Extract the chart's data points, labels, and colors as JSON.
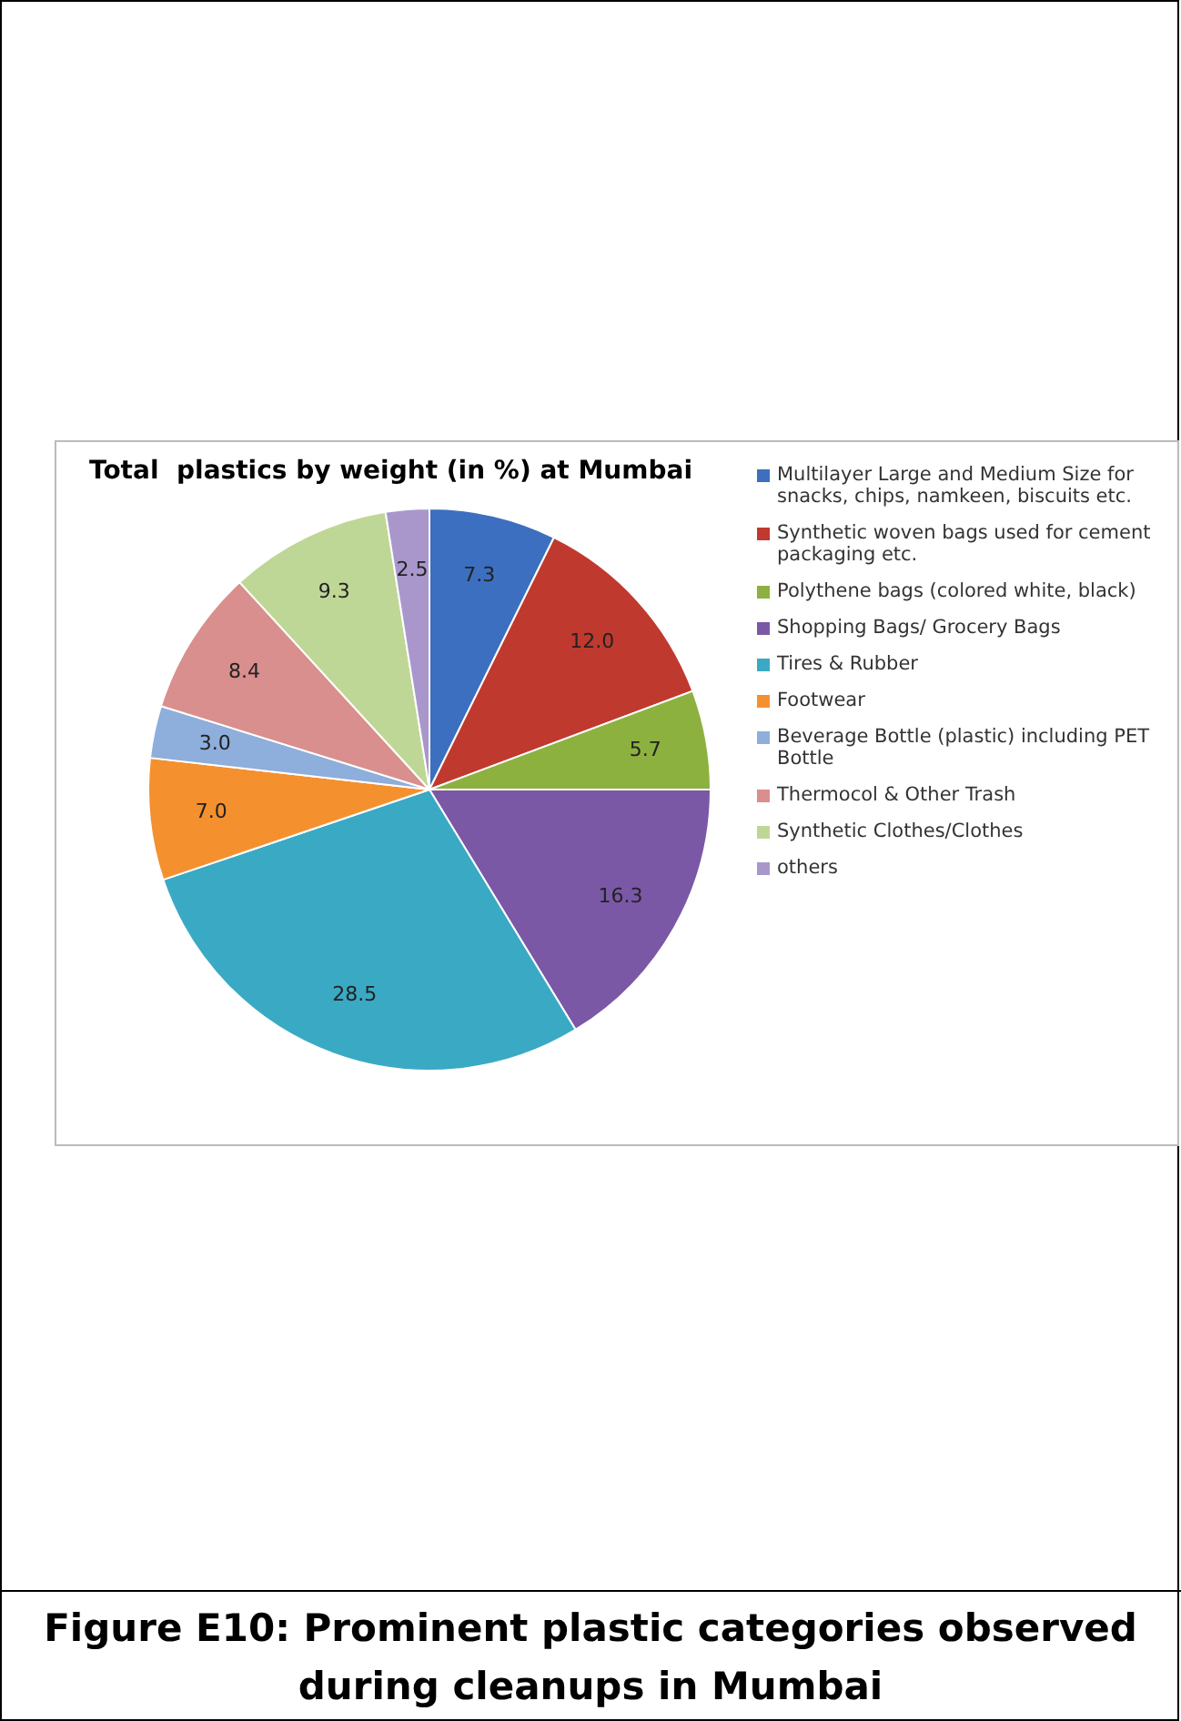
{
  "chart_data": {
    "type": "pie",
    "title": "Total  plastics by weight (in %) at Mumbai",
    "categories": [
      "Multilayer Large and Medium Size for snacks, chips, namkeen, biscuits etc.",
      "Synthetic woven bags used for cement packaging etc.",
      "Polythene bags (colored white, black)",
      "Shopping Bags/ Grocery Bags",
      "Tires & Rubber",
      "Footwear",
      "Beverage Bottle (plastic) including PET Bottle",
      "Thermocol & Other Trash",
      "Synthetic Clothes/Clothes",
      "others"
    ],
    "values": [
      7.3,
      12.0,
      5.7,
      16.3,
      28.5,
      7.0,
      3.0,
      8.4,
      9.3,
      2.5
    ],
    "value_labels": [
      "7.3",
      "12.0",
      "5.7",
      "16.3",
      "28.5",
      "7.0",
      "3.0",
      "8.4",
      "9.3",
      "2.5"
    ],
    "colors": [
      "#3c6fbf",
      "#c0392f",
      "#8db13f",
      "#7a58a6",
      "#3aa9c4",
      "#f5902f",
      "#8eaedb",
      "#d98f8d",
      "#bfd796",
      "#a997cc"
    ],
    "legend": "right",
    "annotations": [
      "Figure E10: Prominent plastic categories observed during cleanups in Mumbai"
    ]
  }
}
